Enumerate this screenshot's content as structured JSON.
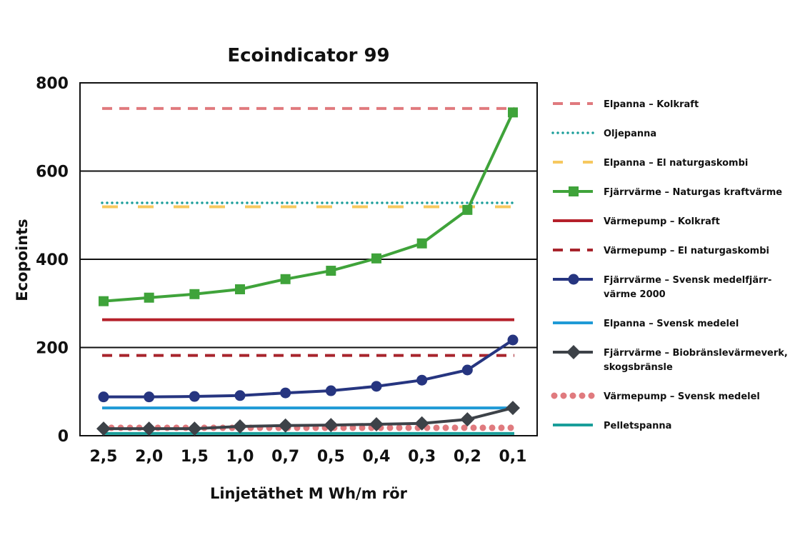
{
  "chart_data": {
    "type": "line",
    "title": "Ecoindicator 99",
    "xlabel": "Linjetäthet M Wh/m rör",
    "ylabel": "Ecopoints",
    "ylim": [
      0,
      800
    ],
    "yticks": [
      "0",
      "200",
      "400",
      "600",
      "800"
    ],
    "grid": "horizontal",
    "legend": "right",
    "categories": [
      "2,5",
      "2,0",
      "1,5",
      "1,0",
      "0,7",
      "0,5",
      "0,4",
      "0,3",
      "0,2",
      "0,1"
    ],
    "series": [
      {
        "name": "Elpanna – Kolkraft",
        "legend_lines": [
          "Elpanna – Kolkraft"
        ],
        "color": "#e07a7e",
        "style": "dashed",
        "marker": "none",
        "values": [
          742,
          742,
          742,
          742,
          742,
          742,
          742,
          742,
          742,
          742
        ]
      },
      {
        "name": "Oljepanna",
        "legend_lines": [
          "Oljepanna"
        ],
        "color": "#1a9e9a",
        "style": "dotted",
        "marker": "none",
        "values": [
          528,
          528,
          528,
          528,
          528,
          528,
          528,
          528,
          528,
          528
        ]
      },
      {
        "name": "Elpanna – El naturgaskombi",
        "legend_lines": [
          "Elpanna – El naturgaskombi"
        ],
        "color": "#f6c85f",
        "style": "longdash",
        "marker": "none",
        "values": [
          519,
          519,
          519,
          519,
          519,
          519,
          519,
          519,
          519,
          519
        ]
      },
      {
        "name": "Fjärrvärme – Naturgas kraftvärme",
        "legend_lines": [
          "Fjärrvärme – Naturgas kraftvärme"
        ],
        "color": "#3fa33a",
        "style": "solid",
        "marker": "square",
        "values": [
          305,
          313,
          321,
          332,
          355,
          374,
          402,
          436,
          512,
          733
        ]
      },
      {
        "name": "Värmepump – Kolkraft",
        "legend_lines": [
          "Värmepump – Kolkraft"
        ],
        "color": "#b5202a",
        "style": "solid",
        "marker": "none",
        "values": [
          263,
          263,
          263,
          263,
          263,
          263,
          263,
          263,
          263,
          263
        ]
      },
      {
        "name": "Värmepump – El naturgaskombi",
        "legend_lines": [
          "Värmepump – El naturgaskombi"
        ],
        "color": "#a8242c",
        "style": "dashed",
        "marker": "none",
        "values": [
          182,
          182,
          182,
          182,
          182,
          182,
          182,
          182,
          182,
          182
        ]
      },
      {
        "name": "Fjärrvärme – Svensk medelfjärrvärme 2000",
        "legend_lines": [
          "Fjärrvärme – Svensk medelfjärr-",
          "värme 2000"
        ],
        "color": "#263580",
        "style": "solid",
        "marker": "circle",
        "values": [
          88,
          88,
          89,
          91,
          97,
          102,
          112,
          126,
          149,
          217
        ]
      },
      {
        "name": "Elpanna – Svensk medelel",
        "legend_lines": [
          "Elpanna – Svensk medelel"
        ],
        "color": "#1f9ad6",
        "style": "solid",
        "marker": "none",
        "values": [
          63,
          63,
          63,
          63,
          63,
          63,
          63,
          63,
          63,
          63
        ]
      },
      {
        "name": "Fjärrvärme – Biobränslevärmeverk, skogsbränsle",
        "legend_lines": [
          "Fjärrvärme – Biobränslevärmeverk,",
          "skogsbränsle"
        ],
        "color": "#3d4248",
        "style": "solid",
        "marker": "diamond",
        "values": [
          16,
          16,
          16,
          21,
          23,
          24,
          26,
          28,
          37,
          63
        ]
      },
      {
        "name": "Värmepump – Svensk medelel",
        "legend_lines": [
          "Värmepump – Svensk medelel"
        ],
        "color": "#e07a7e",
        "style": "bigdots",
        "marker": "none",
        "values": [
          18,
          18,
          18,
          18,
          18,
          18,
          18,
          18,
          18,
          18
        ]
      },
      {
        "name": "Pelletspanna",
        "legend_lines": [
          "Pelletspanna"
        ],
        "color": "#1a9e9a",
        "style": "solid",
        "marker": "none",
        "values": [
          5,
          5,
          5,
          5,
          5,
          5,
          5,
          5,
          5,
          5
        ]
      }
    ]
  }
}
